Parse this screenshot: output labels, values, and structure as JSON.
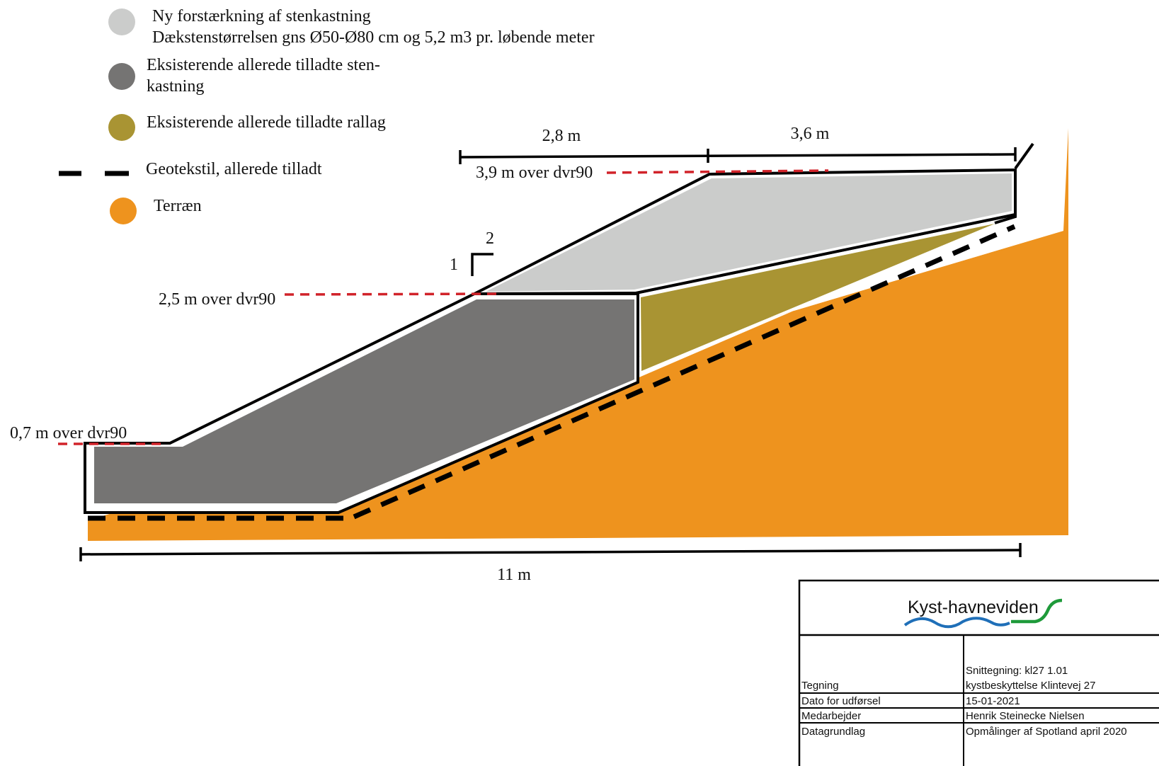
{
  "legend": {
    "new_revetment_line1": "Ny forstærkning af stenkastning",
    "new_revetment_line2": "Dækstenstørrelsen gns Ø50-Ø80 cm og 5,2 m3 pr. løbende meter",
    "existing_revetment_line1": "Eksisterende allerede tilladte sten-",
    "existing_revetment_line2": "kastning",
    "existing_layer": "Eksisterende allerede tilladte rallag",
    "geotextile": "Geotekstil, allerede tilladt",
    "terrain": "Terræn"
  },
  "colors": {
    "new_revetment": "#cbcccb",
    "existing_revetment": "#757473",
    "existing_layer": "#a99433",
    "terrain": "#ee931e",
    "level_line": "#d1232a",
    "logo_blue": "#1f6fb8",
    "logo_green": "#1e9a3a"
  },
  "dimensions": {
    "top_left_width": "2,8 m",
    "top_right_width": "3,6 m",
    "total_width": "11 m",
    "slope_vertical": "1",
    "slope_horizontal": "2"
  },
  "levels": {
    "top": "3,9 m over dvr90",
    "middle": "2,5 m over dvr90",
    "bottom": "0,7 m over dvr90"
  },
  "title_block": {
    "logo_text": "Kyst-havneviden",
    "drawing_title": "Snittegning: kl27 1.01",
    "drawing_subtitle": "kystbeskyttelse Klintevej 27",
    "rows": [
      {
        "label": "Tegning",
        "value": ""
      },
      {
        "label": "Dato for udførsel",
        "value": "15-01-2021"
      },
      {
        "label": "Medarbejder",
        "value": "Henrik Steinecke Nielsen"
      },
      {
        "label": "Datagrundlag",
        "value": "Opmålinger af Spotland april 2020"
      }
    ]
  }
}
